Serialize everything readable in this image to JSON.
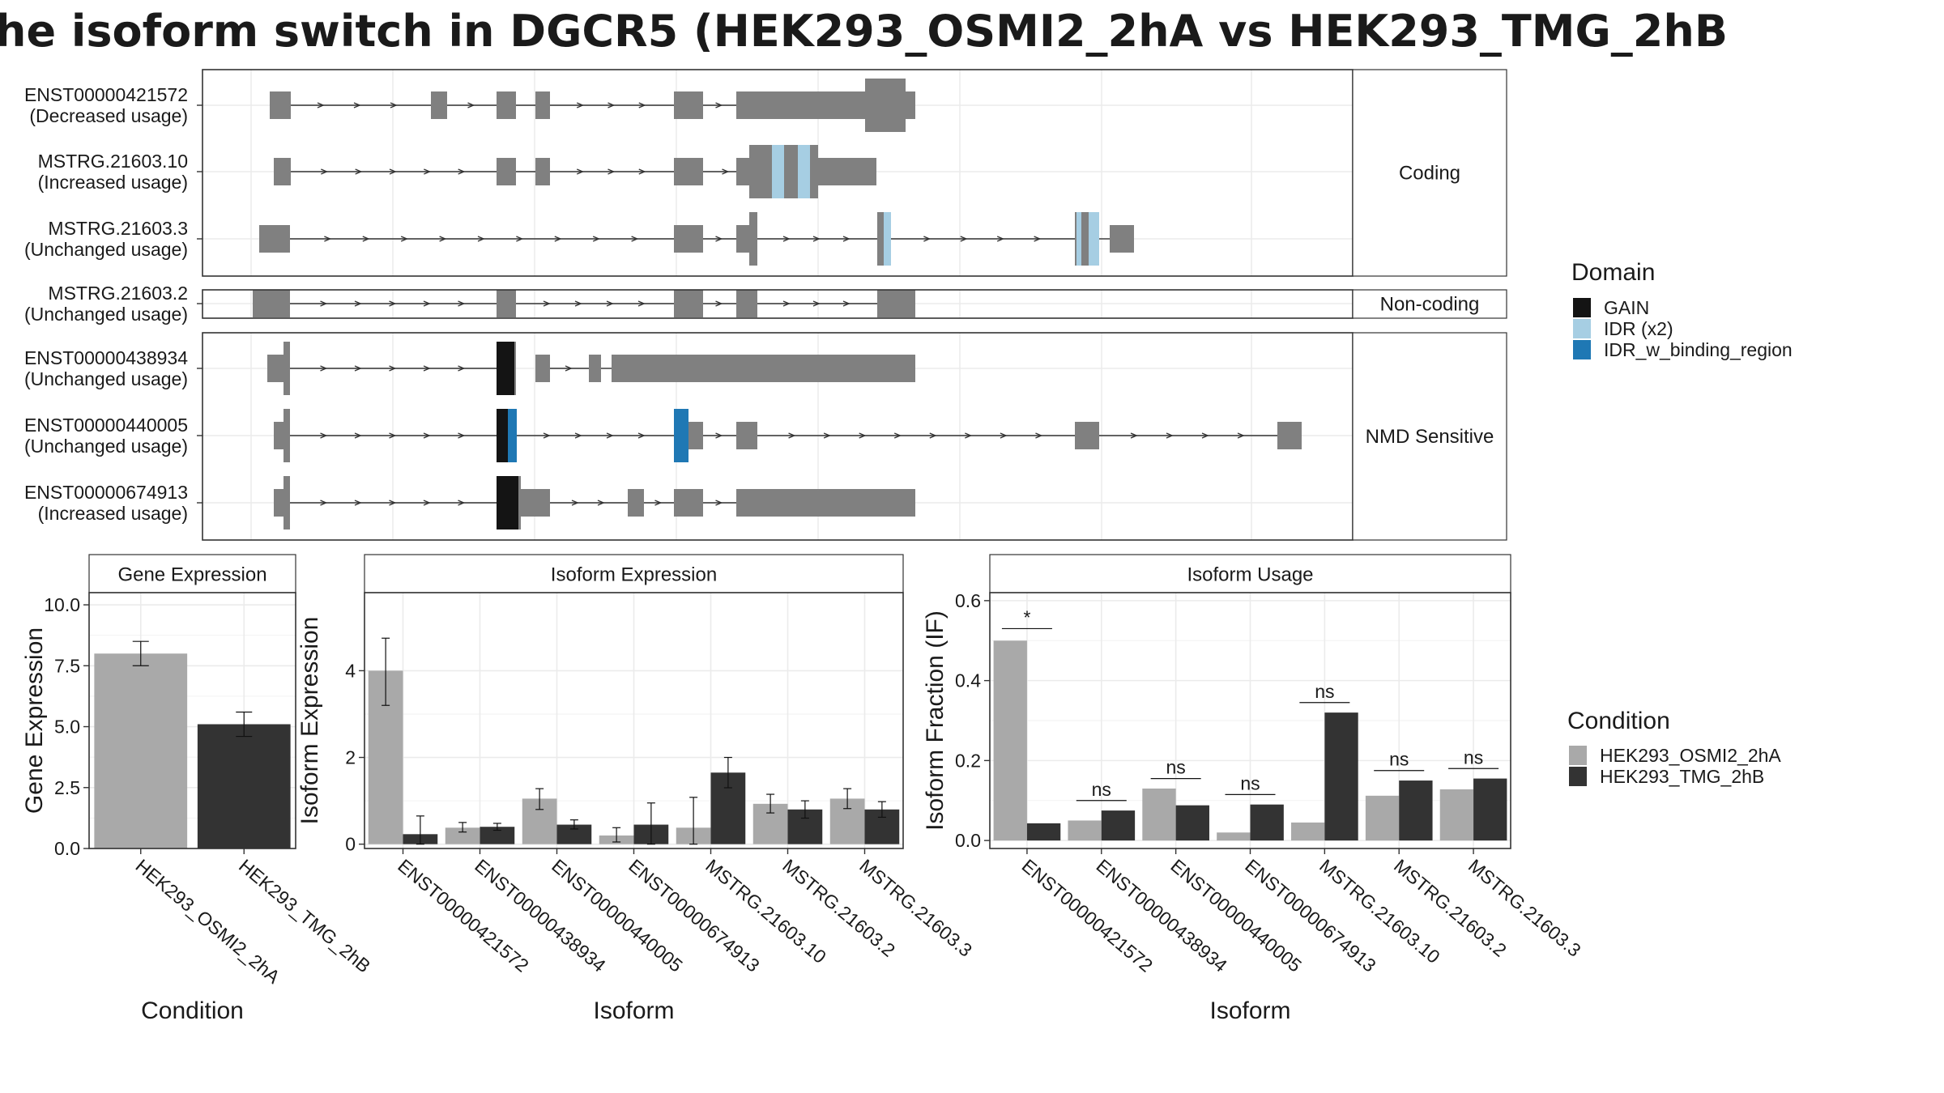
{
  "title": "he isoform switch in DGCR5 (HEK293_OSMI2_2hA vs HEK293_TMG_2hB",
  "colors": {
    "exon": "#808080",
    "cond_a": "#a9a9a9",
    "cond_b": "#333333",
    "domain_gain": "#141414",
    "domain_idr": "#a6cee3",
    "domain_idr_binding": "#1f78b4"
  },
  "chart_data": [
    {
      "type": "gene_structure",
      "facets": [
        {
          "label": "Coding",
          "transcripts": [
            {
              "id": "ENST00000421572",
              "usage": "(Decreased usage)"
            },
            {
              "id": "MSTRG.21603.10",
              "usage": "(Increased usage)"
            },
            {
              "id": "MSTRG.21603.3",
              "usage": "(Unchanged usage)"
            }
          ]
        },
        {
          "label": "Non-coding",
          "transcripts": [
            {
              "id": "MSTRG.21603.2",
              "usage": "(Unchanged usage)"
            }
          ]
        },
        {
          "label": "NMD Sensitive",
          "transcripts": [
            {
              "id": "ENST00000438934",
              "usage": "(Unchanged usage)"
            },
            {
              "id": "ENST00000440005",
              "usage": "(Unchanged usage)"
            },
            {
              "id": "ENST00000674913",
              "usage": "(Increased usage)"
            }
          ]
        }
      ],
      "legend": {
        "title": "Domain",
        "entries": [
          {
            "name": "GAIN",
            "color": "#141414"
          },
          {
            "name": "IDR (x2)",
            "color": "#a6cee3"
          },
          {
            "name": "IDR_w_binding_region",
            "color": "#1f78b4"
          }
        ]
      }
    },
    {
      "type": "bar",
      "strip": "Gene Expression",
      "ylabel": "Gene Expression",
      "xlabel": "Condition",
      "ylim": [
        0,
        10.5
      ],
      "yticks": [
        "0.0",
        "2.5",
        "5.0",
        "7.5",
        "10.0"
      ],
      "ytick_values": [
        0,
        2.5,
        5,
        7.5,
        10
      ],
      "categories": [
        "HEK293_OSMI2_2hA",
        "HEK293_TMG_2hB"
      ],
      "values": [
        8.0,
        5.1
      ],
      "errors": [
        [
          7.5,
          8.5
        ],
        [
          4.6,
          5.6
        ]
      ]
    },
    {
      "type": "bar",
      "strip": "Isoform Expression",
      "ylabel": "Isoform Expression",
      "xlabel": "Isoform",
      "ylim": [
        -0.1,
        5.8
      ],
      "yticks": [
        "0",
        "2",
        "4"
      ],
      "ytick_values": [
        0,
        2,
        4
      ],
      "categories": [
        "ENST00000421572",
        "ENST00000438934",
        "ENST00000440005",
        "ENST00000674913",
        "MSTRG.21603.10",
        "MSTRG.21603.2",
        "MSTRG.21603.3"
      ],
      "series": [
        {
          "name": "HEK293_OSMI2_2hA",
          "values": [
            4.0,
            0.38,
            1.05,
            0.2,
            0.38,
            0.93,
            1.05
          ],
          "errors": [
            [
              3.2,
              4.75
            ],
            [
              0.28,
              0.5
            ],
            [
              0.8,
              1.28
            ],
            [
              0.05,
              0.38
            ],
            [
              0.0,
              1.08
            ],
            [
              0.72,
              1.15
            ],
            [
              0.82,
              1.28
            ]
          ]
        },
        {
          "name": "HEK293_TMG_2hB",
          "values": [
            0.23,
            0.4,
            0.45,
            0.45,
            1.65,
            0.8,
            0.8
          ],
          "errors": [
            [
              0.0,
              0.65
            ],
            [
              0.32,
              0.48
            ],
            [
              0.35,
              0.56
            ],
            [
              0.0,
              0.95
            ],
            [
              1.3,
              2.0
            ],
            [
              0.6,
              1.0
            ],
            [
              0.62,
              0.98
            ]
          ]
        }
      ]
    },
    {
      "type": "bar",
      "strip": "Isoform Usage",
      "ylabel": "Isoform Fraction (IF)",
      "xlabel": "Isoform",
      "ylim": [
        -0.02,
        0.62
      ],
      "yticks": [
        "0.0",
        "0.2",
        "0.4",
        "0.6"
      ],
      "ytick_values": [
        0,
        0.2,
        0.4,
        0.6
      ],
      "categories": [
        "ENST00000421572",
        "ENST00000438934",
        "ENST00000440005",
        "ENST00000674913",
        "MSTRG.21603.10",
        "MSTRG.21603.2",
        "MSTRG.21603.3"
      ],
      "series": [
        {
          "name": "HEK293_OSMI2_2hA",
          "values": [
            0.5,
            0.05,
            0.13,
            0.02,
            0.045,
            0.112,
            0.128
          ]
        },
        {
          "name": "HEK293_TMG_2hB",
          "values": [
            0.043,
            0.075,
            0.088,
            0.09,
            0.32,
            0.15,
            0.155
          ]
        }
      ],
      "significance": [
        "*",
        "ns",
        "ns",
        "ns",
        "ns",
        "ns",
        "ns"
      ],
      "significance_y": [
        0.53,
        0.1,
        0.155,
        0.115,
        0.345,
        0.175,
        0.18
      ]
    }
  ],
  "condition_legend": {
    "title": "Condition",
    "entries": [
      {
        "name": "HEK293_OSMI2_2hA",
        "color": "#a9a9a9"
      },
      {
        "name": "HEK293_TMG_2hB",
        "color": "#333333"
      }
    ]
  }
}
